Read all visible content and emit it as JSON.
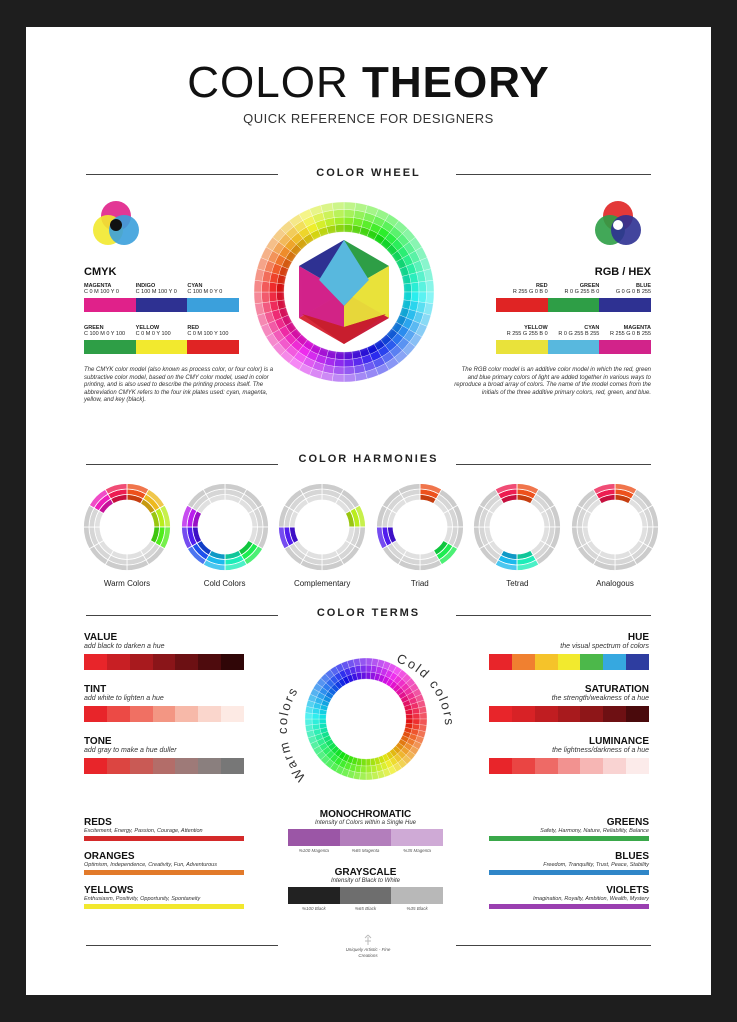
{
  "header": {
    "title_light": "COLOR",
    "title_bold": "THEORY",
    "subtitle": "QUICK REFERENCE FOR DESIGNERS"
  },
  "sections": {
    "wheel": "COLOR WHEEL",
    "harmonies": "COLOR HARMONIES",
    "terms": "COLOR TERMS"
  },
  "cmyk": {
    "title": "CMYK",
    "row1": [
      {
        "name": "MAGENTA",
        "code": "C 0 M 100 Y 0",
        "color": "#e0218a"
      },
      {
        "name": "INDIGO",
        "code": "C 100 M 100 Y 0",
        "color": "#2e3192"
      },
      {
        "name": "CYAN",
        "code": "C 100 M 0 Y 0",
        "color": "#3ba0dc"
      }
    ],
    "row2": [
      {
        "name": "GREEN",
        "code": "C 100 M 0 Y 100",
        "color": "#2e9e46"
      },
      {
        "name": "YELLOW",
        "code": "C 0 M 0 Y 100",
        "color": "#f2e92e"
      },
      {
        "name": "RED",
        "code": "C 0 M 100 Y 100",
        "color": "#e02424"
      }
    ],
    "description": "The CMYK color model (also known as process color, or four color) is a subtractive color model, based on the CMY color model, used in color printing, and is also used to describe the printing process itself. The abbreviation CMYK refers to the four ink plates used: cyan, magenta, yellow, and key (black)."
  },
  "rgb": {
    "title": "RGB / HEX",
    "row1": [
      {
        "name": "RED",
        "code": "R 255 G 0 B 0",
        "color": "#e02424"
      },
      {
        "name": "GREEN",
        "code": "R 0 G 255 B 0",
        "color": "#2e9e46"
      },
      {
        "name": "BLUE",
        "code": "G 0 G 0 B 255",
        "color": "#2e3192"
      }
    ],
    "row2": [
      {
        "name": "YELLOW",
        "code": "R 255 G 255 B 0",
        "color": "#e9e23a"
      },
      {
        "name": "CYAN",
        "code": "R 0 G 255 B 255",
        "color": "#58b8de"
      },
      {
        "name": "MAGENTA",
        "code": "R 255 G 0 B 255",
        "color": "#d2238a"
      }
    ],
    "description": "The RGB color model is an additive color model in which the red, green and blue primary colors of light are added together in various ways to reproduce a broad array of colors. The name of the model comes from the initials of the three additive primary colors, red, green, and blue."
  },
  "harmonies": [
    {
      "label": "Warm Colors"
    },
    {
      "label": "Cold Colors"
    },
    {
      "label": "Complementary"
    },
    {
      "label": "Triad"
    },
    {
      "label": "Tetrad"
    },
    {
      "label": "Analogous"
    }
  ],
  "terms_left": [
    {
      "title": "VALUE",
      "sub": "add black to darken a hue",
      "colors": [
        "#e8252a",
        "#c81f24",
        "#a81a1e",
        "#8a1519",
        "#6c1013",
        "#4e0b0d",
        "#300607"
      ]
    },
    {
      "title": "TINT",
      "sub": "add white to lighten a hue",
      "colors": [
        "#e8252a",
        "#ec4a45",
        "#f07063",
        "#f39683",
        "#f7b9a9",
        "#fad6cc",
        "#fdeae4"
      ]
    },
    {
      "title": "TONE",
      "sub": "add gray to make a hue duller",
      "colors": [
        "#e8252a",
        "#dc4541",
        "#c95a55",
        "#b36d69",
        "#9e7a78",
        "#8a7f7e",
        "#777777"
      ]
    }
  ],
  "terms_right": [
    {
      "title": "HUE",
      "sub": "the visual spectrum of colors",
      "colors": [
        "#e8252a",
        "#f08030",
        "#f5c32a",
        "#f2ea2e",
        "#4cb84a",
        "#36a8e0",
        "#2e3da0"
      ]
    },
    {
      "title": "SATURATION",
      "sub": "the strength/weakness of a hue",
      "colors": [
        "#e8252a",
        "#d82226",
        "#c01d21",
        "#a81a1d",
        "#8e1618",
        "#6e1013",
        "#4a0a0c"
      ]
    },
    {
      "title": "LUMINANCE",
      "sub": "the lightness/darkness of a hue",
      "colors": [
        "#e8252a",
        "#ea4543",
        "#ee6a66",
        "#f29290",
        "#f6b6b4",
        "#f9d3d2",
        "#fcebea"
      ]
    }
  ],
  "wheel_words": {
    "warm": "Warm colors",
    "cold": "Cold colors"
  },
  "meanings_left": [
    {
      "title": "REDS",
      "text": "Excitement, Energy, Passion, Courage, Attention",
      "color": "#d42a2a"
    },
    {
      "title": "ORANGES",
      "text": "Optimism, Independence, Creativity, Fun, Adventurous",
      "color": "#e27a2a"
    },
    {
      "title": "YELLOWS",
      "text": "Enthusiasm, Positivity, Opportunity, Spontaneity",
      "color": "#f2e82e"
    }
  ],
  "meanings_right": [
    {
      "title": "GREENS",
      "text": "Safety, Harmony, Nature, Reliability, Balance",
      "color": "#3aa84a"
    },
    {
      "title": "BLUES",
      "text": "Freedom, Tranquility, Trust, Peace, Stability",
      "color": "#2f86c8"
    },
    {
      "title": "VIOLETS",
      "text": "Imagination, Royalty, Ambition, Wealth, Mystery",
      "color": "#9a3fb0"
    }
  ],
  "monochromatic": {
    "title": "MONOCHROMATIC",
    "sub": "Intensity of Colors within a Single Hue",
    "colors": [
      "#9b56a6",
      "#b37ebc",
      "#cfaad6"
    ],
    "labels": [
      "%100 Magenta",
      "%65 Magenta",
      "%35 Magenta"
    ]
  },
  "grayscale": {
    "title": "GRAYSCALE",
    "sub": "Intensity of Black to White",
    "colors": [
      "#222222",
      "#6e6e6e",
      "#b8b8b8"
    ],
    "labels": [
      "%100 Black",
      "%65 Black",
      "%35 Black"
    ]
  },
  "footer": {
    "line1": "Uniquely Artistic - Fine",
    "line2": "Creations"
  }
}
